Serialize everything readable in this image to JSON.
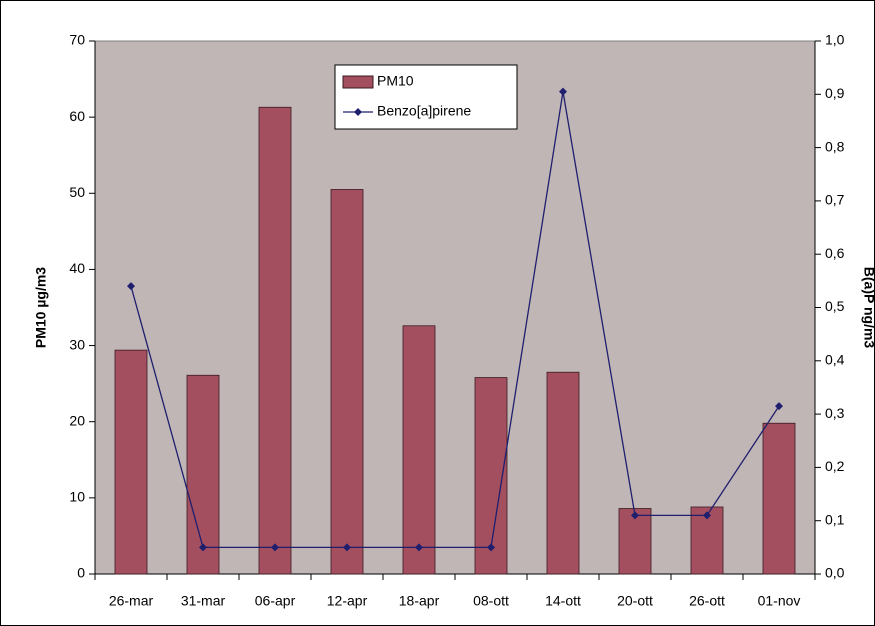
{
  "chart_data": {
    "type": "bar-line",
    "categories": [
      "26-mar",
      "31-mar",
      "06-apr",
      "12-apr",
      "18-apr",
      "08-ott",
      "14-ott",
      "20-ott",
      "26-ott",
      "01-nov"
    ],
    "series": [
      {
        "name": "PM10",
        "type": "bar",
        "color": "#a34f5f",
        "values": [
          29.4,
          26.1,
          61.3,
          50.5,
          32.6,
          25.8,
          26.5,
          8.6,
          8.8,
          19.8
        ]
      },
      {
        "name": "Benzo[a]pirene",
        "type": "line",
        "axis": "y2",
        "color": "#1f1f6e",
        "values": [
          0.54,
          0.05,
          0.05,
          0.05,
          0.05,
          0.05,
          0.905,
          0.11,
          0.11,
          0.315
        ]
      }
    ],
    "ylabel": "PM10 µg/m3",
    "y2label": "B(a)P ng/m3",
    "ylim": [
      0,
      70
    ],
    "yticks": [
      0,
      10,
      20,
      30,
      40,
      50,
      60,
      70
    ],
    "y2lim": [
      0,
      1.0
    ],
    "y2ticks": [
      {
        "value": 0,
        "label": "0,0"
      },
      {
        "value": 0.1,
        "label": "0,1"
      },
      {
        "value": 0.2,
        "label": "0,2"
      },
      {
        "value": 0.3,
        "label": "0,3"
      },
      {
        "value": 0.4,
        "label": "0,4"
      },
      {
        "value": 0.5,
        "label": "0,5"
      },
      {
        "value": 0.6,
        "label": "0,6"
      },
      {
        "value": 0.7,
        "label": "0,7"
      },
      {
        "value": 0.8,
        "label": "0,8"
      },
      {
        "value": 0.9,
        "label": "0,9"
      },
      {
        "value": 1.0,
        "label": "1,0"
      }
    ],
    "plot_background": "#c0b6b6"
  }
}
